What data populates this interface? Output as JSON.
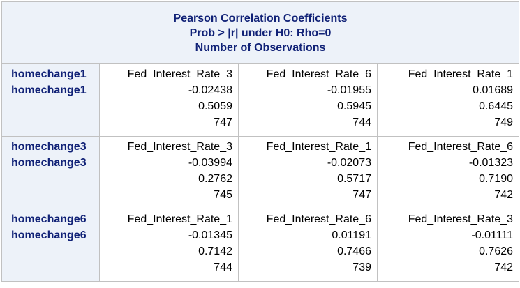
{
  "header": {
    "line1": "Pearson Correlation Coefficients",
    "line2": "Prob > |r| under H0: Rho=0",
    "line3": "Number of Observations"
  },
  "groups": [
    {
      "row_label_1": "homechange1",
      "row_label_2": "homechange1",
      "cells": [
        {
          "var": "Fed_Interest_Rate_3",
          "r": "-0.02438",
          "p": "0.5059",
          "n": "747"
        },
        {
          "var": "Fed_Interest_Rate_6",
          "r": "-0.01955",
          "p": "0.5945",
          "n": "744"
        },
        {
          "var": "Fed_Interest_Rate_1",
          "r": "0.01689",
          "p": "0.6445",
          "n": "749"
        }
      ]
    },
    {
      "row_label_1": "homechange3",
      "row_label_2": "homechange3",
      "cells": [
        {
          "var": "Fed_Interest_Rate_3",
          "r": "-0.03994",
          "p": "0.2762",
          "n": "745"
        },
        {
          "var": "Fed_Interest_Rate_1",
          "r": "-0.02073",
          "p": "0.5717",
          "n": "747"
        },
        {
          "var": "Fed_Interest_Rate_6",
          "r": "-0.01323",
          "p": "0.7190",
          "n": "742"
        }
      ]
    },
    {
      "row_label_1": "homechange6",
      "row_label_2": "homechange6",
      "cells": [
        {
          "var": "Fed_Interest_Rate_1",
          "r": "-0.01345",
          "p": "0.7142",
          "n": "744"
        },
        {
          "var": "Fed_Interest_Rate_6",
          "r": "0.01191",
          "p": "0.7466",
          "n": "739"
        },
        {
          "var": "Fed_Interest_Rate_3",
          "r": "-0.01111",
          "p": "0.7626",
          "n": "742"
        }
      ]
    }
  ],
  "colors": {
    "header_bg": "#edf2f9",
    "header_text": "#112277",
    "border": "#c1c1c1"
  }
}
